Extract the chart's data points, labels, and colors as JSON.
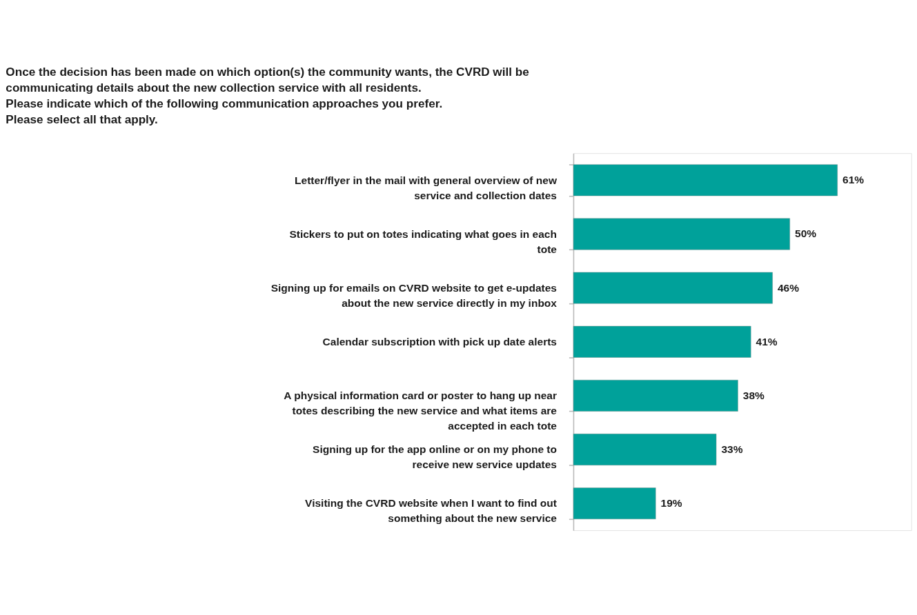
{
  "chart_data": {
    "type": "bar",
    "orientation": "horizontal",
    "title": "Once the decision has been made on which option(s) the community wants, the CVRD will be\ncommunicating details about the new collection service with all residents.\nPlease indicate which of the following communication approaches you prefer.\nPlease select all that apply.",
    "categories": [
      "Letter/flyer in the mail with general overview of new service and collection dates",
      "Stickers to put on totes indicating what goes in each tote",
      "Signing up for emails on CVRD website to get e-updates about the new service directly in my inbox",
      "Calendar subscription with pick up date alerts",
      "A physical information card or poster to hang up near totes describing the new service and what items are accepted in each tote",
      "Signing up for the app online or on my phone to receive new service updates",
      "Visiting the CVRD website when I want to find out something about the new service"
    ],
    "values": [
      61,
      50,
      46,
      41,
      38,
      33,
      19
    ],
    "value_labels": [
      "61%",
      "50%",
      "46%",
      "41%",
      "38%",
      "33%",
      "19%"
    ],
    "color": "#00a19a"
  }
}
